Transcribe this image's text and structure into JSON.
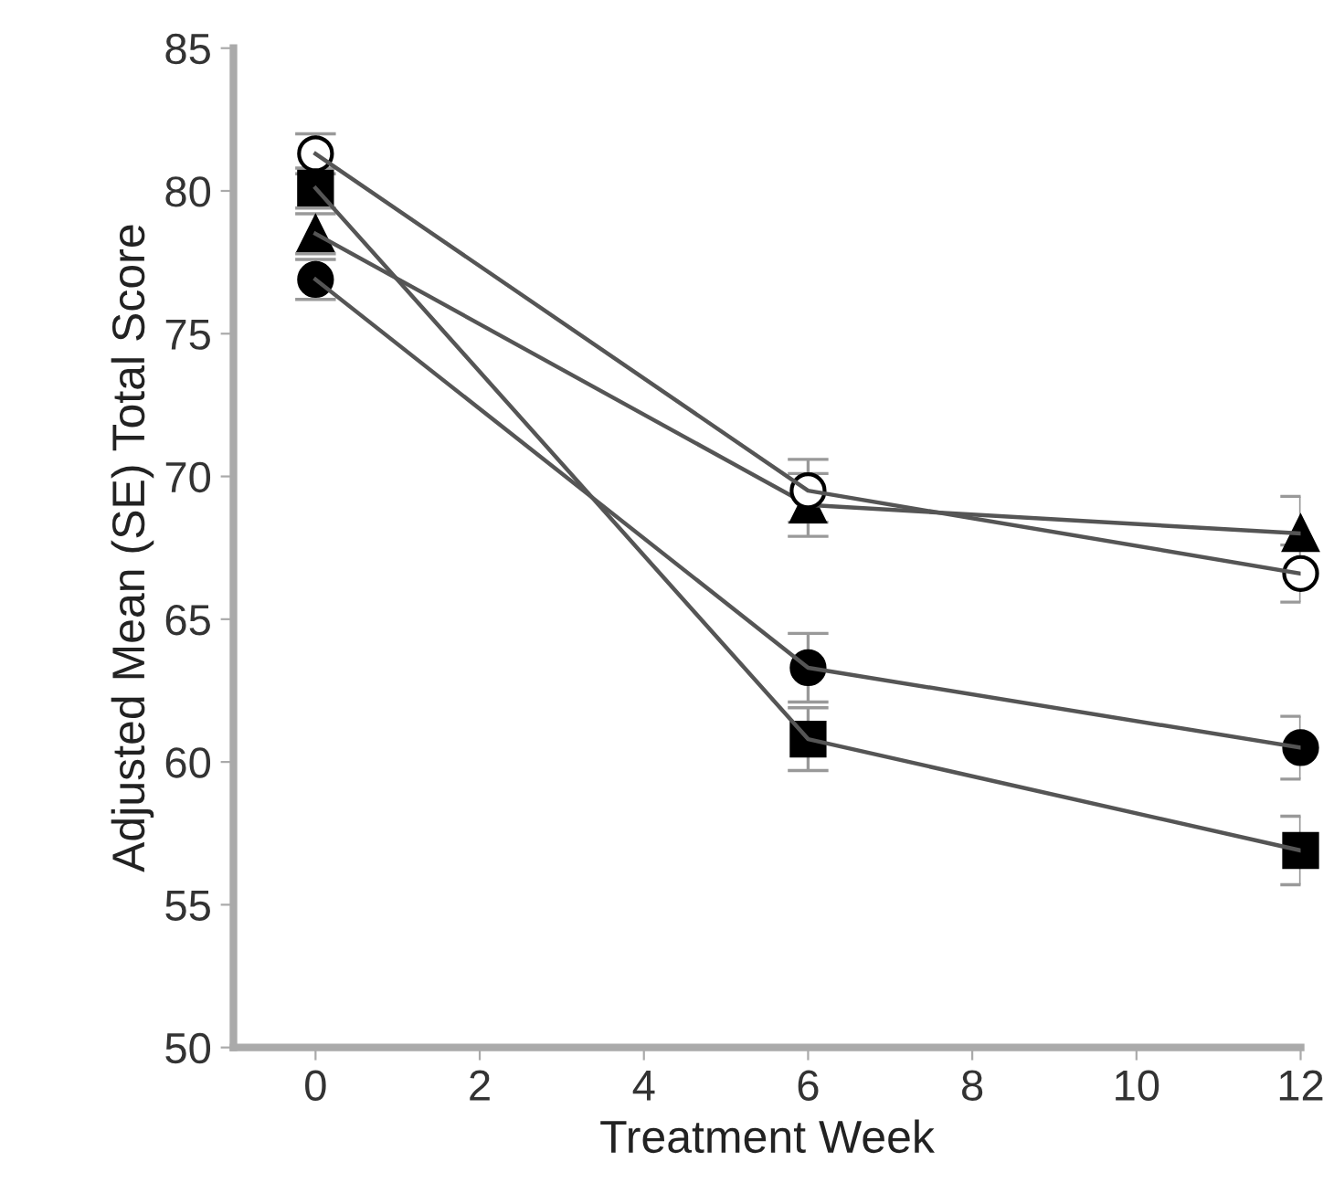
{
  "chart_data": {
    "type": "line",
    "xlabel": "Treatment Week",
    "ylabel": "Adjusted Mean (SE) Total Score",
    "x": [
      0,
      6,
      12
    ],
    "xlim": [
      -1,
      12
    ],
    "xticks": [
      0,
      2,
      4,
      6,
      8,
      10,
      12
    ],
    "ylim": [
      50,
      85
    ],
    "yticks": [
      50,
      55,
      60,
      65,
      70,
      75,
      80,
      85
    ],
    "grid": false,
    "legend": false,
    "series": [
      {
        "color": "#ffffff",
        "marker": "circle",
        "values": [
          81.3,
          69.5,
          66.6
        ],
        "errors": [
          0.7,
          1.1,
          1.0
        ]
      },
      {
        "color": "#000000",
        "marker": "triangle",
        "values": [
          78.5,
          69.0,
          68.0
        ],
        "errors": [
          0.7,
          1.1,
          1.3
        ]
      },
      {
        "color": "#000000",
        "marker": "circle",
        "values": [
          76.9,
          63.3,
          60.5
        ],
        "errors": [
          0.7,
          1.2,
          1.1
        ]
      },
      {
        "color": "#000000",
        "marker": "square",
        "values": [
          80.1,
          60.8,
          56.9
        ],
        "errors": [
          0.7,
          1.1,
          1.2
        ]
      }
    ]
  }
}
